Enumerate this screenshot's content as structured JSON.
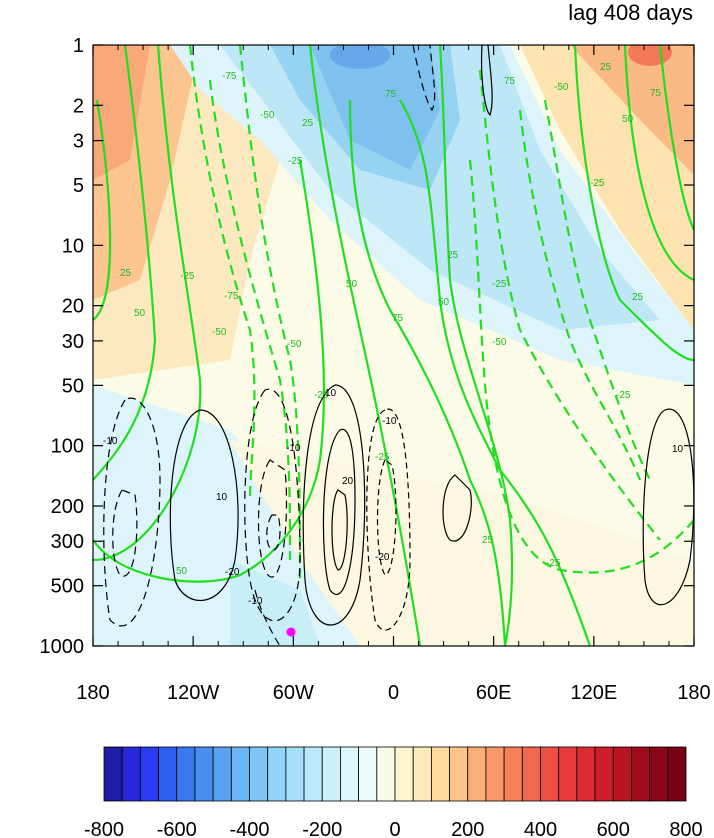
{
  "chart_data": {
    "type": "heatmap",
    "title": "lag 408 days",
    "x_ticks": [
      "180",
      "120W",
      "60W",
      "0",
      "60E",
      "120E",
      "180"
    ],
    "y_ticks": [
      "1",
      "2",
      "3",
      "5",
      "10",
      "20",
      "30",
      "50",
      "100",
      "200",
      "300",
      "500",
      "1000"
    ],
    "y_scale": "log",
    "y_reversed": true,
    "xlim": [
      -180,
      180
    ],
    "ylim": [
      1000,
      1
    ],
    "grid": false,
    "colorbar": {
      "ticks": [
        "-800",
        "-600",
        "-400",
        "-200",
        "0",
        "200",
        "400",
        "600",
        "800"
      ],
      "levels": [
        -800,
        -750,
        -700,
        -650,
        -600,
        -550,
        -500,
        -450,
        -400,
        -350,
        -300,
        -250,
        -200,
        -150,
        -100,
        -50,
        0,
        50,
        100,
        150,
        200,
        250,
        300,
        350,
        400,
        450,
        500,
        550,
        600,
        650,
        700,
        750,
        800
      ],
      "colors": [
        "#1e1ea6",
        "#2828d8",
        "#2a3cf0",
        "#2e5ef0",
        "#3a78ee",
        "#4a8ef0",
        "#5aa2f0",
        "#6ab6f2",
        "#7ec6f4",
        "#92d4f6",
        "#a6e0f8",
        "#bae9fa",
        "#cdf0fa",
        "#ddf6fb",
        "#ecfbfb",
        "#fafbe6",
        "#fdf4d2",
        "#fde9ba",
        "#fdd9a0",
        "#fcc48a",
        "#fbae78",
        "#f99868",
        "#f6805a",
        "#f2684e",
        "#ee5044",
        "#e83a3a",
        "#dc2a32",
        "#cc1e2c",
        "#b81424",
        "#a00c1e",
        "#8a0618",
        "#780014"
      ]
    },
    "marker": {
      "lon": -60,
      "p": 850,
      "color": "#ff00ff"
    },
    "contour_labels_green": [
      "-75",
      "-50",
      "-25",
      "25",
      "50",
      "75"
    ],
    "contour_labels_black": [
      "-20",
      "-10",
      "10",
      "20"
    ]
  }
}
